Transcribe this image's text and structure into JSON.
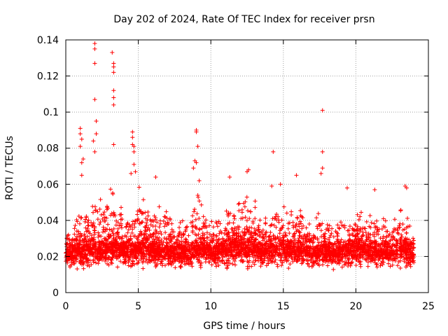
{
  "chart_data": {
    "type": "scatter",
    "title": "Day 202 of 2024, Rate Of TEC Index for receiver prsn",
    "xlabel": "GPS time / hours",
    "ylabel": "ROTI / TECUs",
    "xlim": [
      0,
      25
    ],
    "ylim": [
      0,
      0.14
    ],
    "grid": true,
    "marker": "+",
    "color": "#ff0000",
    "x_ticks": [
      0,
      5,
      10,
      15,
      20,
      25
    ],
    "x_tick_labels": [
      "0",
      "5",
      "10",
      "15",
      "20",
      "25"
    ],
    "y_ticks": [
      0,
      0.02,
      0.04,
      0.06,
      0.08,
      0.1,
      0.12,
      0.14
    ],
    "y_tick_labels": [
      "0",
      "0.02",
      "0.04",
      "0.06",
      "0.08",
      "0.1",
      "0.12",
      "0.14"
    ],
    "series": [
      {
        "name": "ROTI",
        "envelope": {
          "x": [
            0,
            0.5,
            1,
            1.5,
            2,
            2.5,
            3,
            3.5,
            4,
            4.5,
            5,
            5.5,
            6,
            6.5,
            7,
            7.5,
            8,
            8.5,
            9,
            9.5,
            10,
            10.5,
            11,
            11.5,
            12,
            12.5,
            13,
            13.5,
            14,
            14.5,
            15,
            15.5,
            16,
            16.5,
            17,
            17.5,
            18,
            18.5,
            19,
            19.5,
            20,
            20.5,
            21,
            21.5,
            22,
            22.5,
            23,
            23.5,
            24
          ],
          "upper": [
            0.03,
            0.04,
            0.055,
            0.045,
            0.06,
            0.05,
            0.06,
            0.05,
            0.055,
            0.045,
            0.06,
            0.055,
            0.05,
            0.05,
            0.055,
            0.04,
            0.04,
            0.045,
            0.06,
            0.05,
            0.045,
            0.045,
            0.055,
            0.05,
            0.06,
            0.055,
            0.055,
            0.045,
            0.045,
            0.05,
            0.05,
            0.045,
            0.05,
            0.05,
            0.04,
            0.045,
            0.045,
            0.04,
            0.045,
            0.045,
            0.045,
            0.045,
            0.045,
            0.045,
            0.045,
            0.04,
            0.045,
            0.05,
            0.035
          ],
          "mid": [
            0.018,
            0.019,
            0.02,
            0.02,
            0.021,
            0.02,
            0.022,
            0.021,
            0.021,
            0.02,
            0.022,
            0.021,
            0.02,
            0.019,
            0.02,
            0.019,
            0.019,
            0.019,
            0.02,
            0.021,
            0.02,
            0.02,
            0.021,
            0.022,
            0.023,
            0.022,
            0.021,
            0.02,
            0.02,
            0.021,
            0.021,
            0.02,
            0.021,
            0.021,
            0.019,
            0.02,
            0.02,
            0.019,
            0.019,
            0.02,
            0.02,
            0.02,
            0.02,
            0.02,
            0.02,
            0.019,
            0.02,
            0.02,
            0.018
          ],
          "lower": [
            0.006,
            0.008,
            0.008,
            0.008,
            0.008,
            0.008,
            0.008,
            0.008,
            0.008,
            0.008,
            0.008,
            0.008,
            0.008,
            0.008,
            0.008,
            0.008,
            0.008,
            0.008,
            0.008,
            0.008,
            0.008,
            0.008,
            0.008,
            0.008,
            0.008,
            0.008,
            0.008,
            0.008,
            0.008,
            0.008,
            0.008,
            0.008,
            0.008,
            0.008,
            0.008,
            0.008,
            0.008,
            0.008,
            0.008,
            0.008,
            0.008,
            0.008,
            0.008,
            0.008,
            0.008,
            0.008,
            0.008,
            0.008,
            0.008
          ]
        },
        "outliers": [
          [
            2.0,
            0.138
          ],
          [
            2.0,
            0.135
          ],
          [
            2.0,
            0.127
          ],
          [
            2.0,
            0.107
          ],
          [
            2.1,
            0.095
          ],
          [
            2.1,
            0.088
          ],
          [
            1.9,
            0.084
          ],
          [
            2.0,
            0.078
          ],
          [
            3.2,
            0.133
          ],
          [
            3.3,
            0.127
          ],
          [
            3.3,
            0.125
          ],
          [
            3.3,
            0.122
          ],
          [
            3.3,
            0.112
          ],
          [
            3.3,
            0.108
          ],
          [
            3.3,
            0.104
          ],
          [
            3.3,
            0.082
          ],
          [
            1.0,
            0.091
          ],
          [
            1.0,
            0.088
          ],
          [
            1.1,
            0.085
          ],
          [
            1.0,
            0.081
          ],
          [
            1.2,
            0.074
          ],
          [
            1.1,
            0.072
          ],
          [
            1.1,
            0.065
          ],
          [
            4.6,
            0.089
          ],
          [
            4.6,
            0.086
          ],
          [
            4.6,
            0.082
          ],
          [
            4.7,
            0.081
          ],
          [
            4.7,
            0.078
          ],
          [
            4.7,
            0.071
          ],
          [
            4.8,
            0.067
          ],
          [
            4.5,
            0.066
          ],
          [
            9.0,
            0.09
          ],
          [
            9.0,
            0.089
          ],
          [
            9.1,
            0.081
          ],
          [
            8.9,
            0.073
          ],
          [
            9.0,
            0.072
          ],
          [
            8.8,
            0.069
          ],
          [
            9.2,
            0.062
          ],
          [
            17.7,
            0.101
          ],
          [
            17.7,
            0.078
          ],
          [
            17.7,
            0.069
          ],
          [
            17.6,
            0.066
          ],
          [
            14.3,
            0.078
          ],
          [
            15.9,
            0.065
          ],
          [
            12.6,
            0.068
          ],
          [
            12.5,
            0.067
          ],
          [
            11.3,
            0.064
          ],
          [
            6.2,
            0.064
          ],
          [
            23.4,
            0.059
          ],
          [
            23.5,
            0.058
          ],
          [
            21.3,
            0.057
          ],
          [
            19.4,
            0.058
          ],
          [
            14.2,
            0.059
          ],
          [
            14.8,
            0.06
          ]
        ]
      }
    ]
  }
}
